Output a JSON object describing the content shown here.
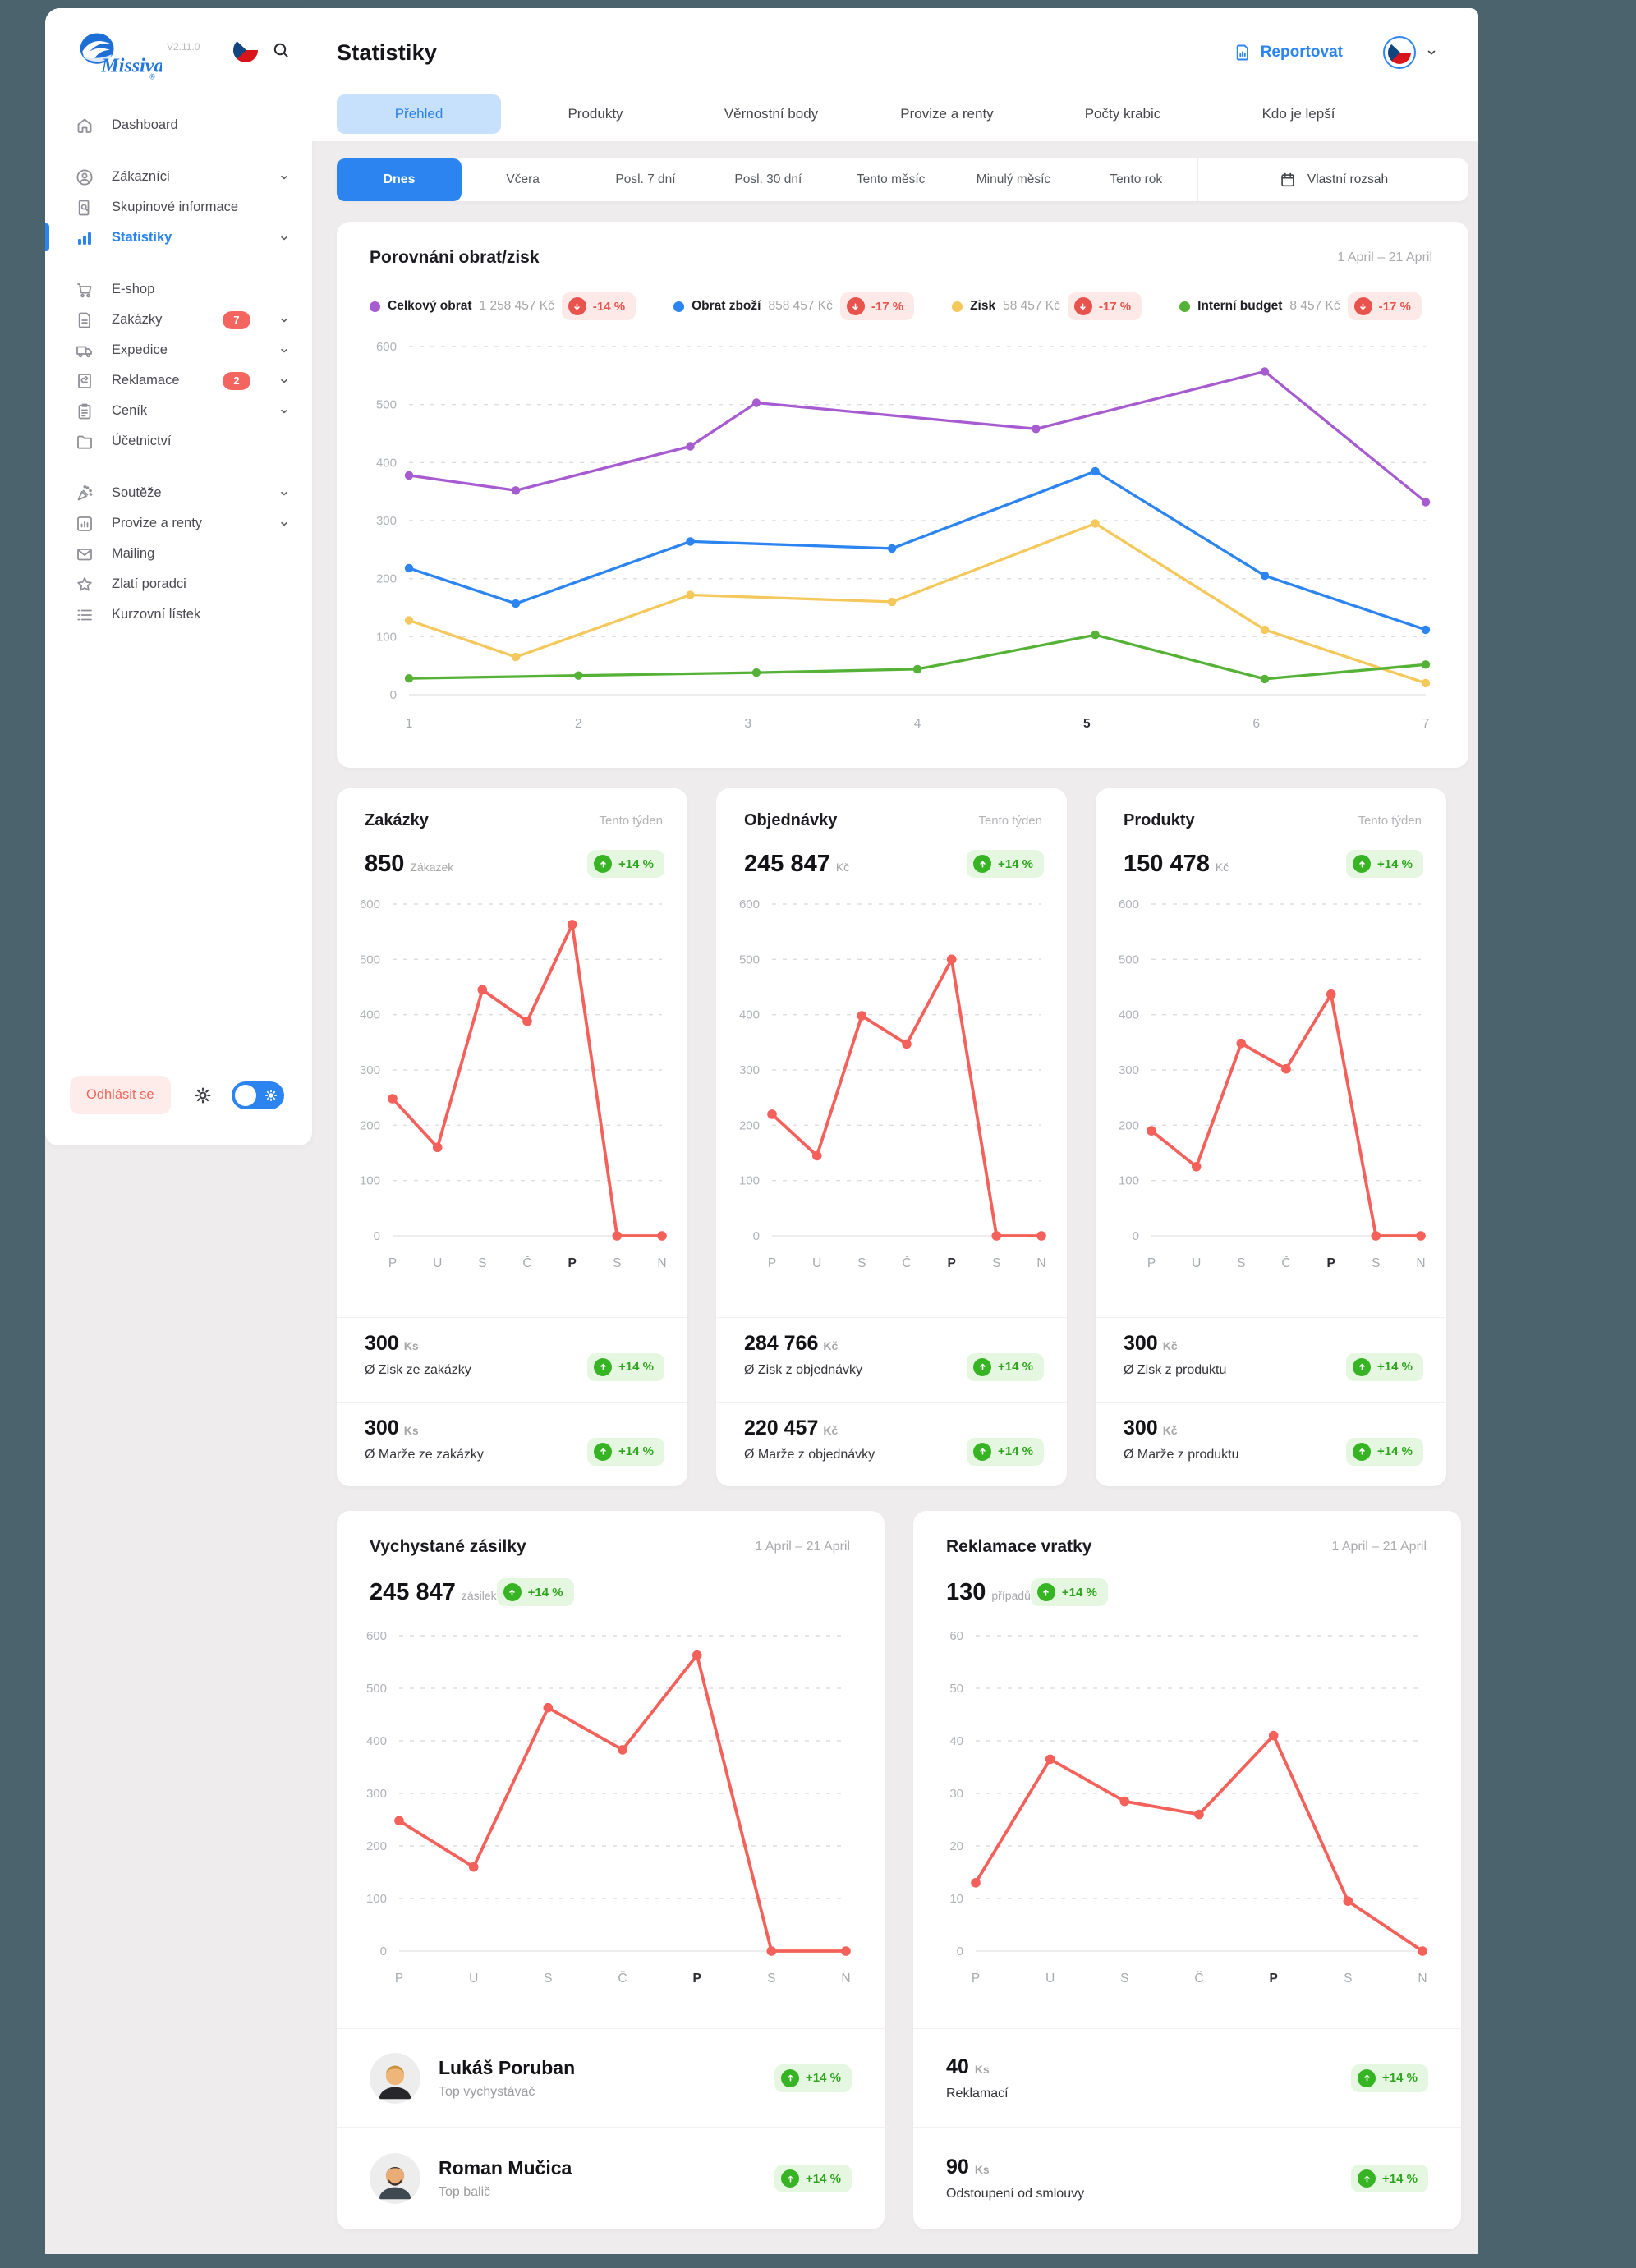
{
  "colors": {
    "accent": "#2B84F0",
    "accent_light": "#C7E0FC",
    "frame": "#4A636D",
    "canvas": "#EEECEC",
    "negative": "#E8544D",
    "negative_bg": "#FCE9E8",
    "positive": "#2FA51F",
    "positive_bg": "#E6F7E1",
    "badge_red": "#F4655F",
    "line_red": "#F4605A"
  },
  "sidebar": {
    "brand": "Missiva",
    "version": "V2.11.0",
    "flag_icon": "czech-flag-icon",
    "search_icon": "search-icon",
    "items": [
      {
        "icon": "home-icon",
        "label": "Dashboard"
      },
      {
        "icon": "user-icon",
        "label": "Zákazníci",
        "chevron": true,
        "gap_before": true
      },
      {
        "icon": "doc-search-icon",
        "label": "Skupinové informace"
      },
      {
        "icon": "bar-chart-icon",
        "label": "Statistiky",
        "chevron": true,
        "active": true
      },
      {
        "icon": "cart-icon",
        "label": "E-shop",
        "gap_before": true
      },
      {
        "icon": "file-icon",
        "label": "Zakázky",
        "badge": "7",
        "chevron": true
      },
      {
        "icon": "truck-icon",
        "label": "Expedice",
        "chevron": true
      },
      {
        "icon": "return-icon",
        "label": "Reklamace",
        "badge": "2",
        "chevron": true
      },
      {
        "icon": "clipboard-icon",
        "label": "Ceník",
        "chevron": true
      },
      {
        "icon": "folder-icon",
        "label": "Účetnictví"
      },
      {
        "icon": "party-icon",
        "label": "Soutěže",
        "chevron": true,
        "gap_before": true
      },
      {
        "icon": "chart-box-icon",
        "label": "Provize a renty",
        "chevron": true
      },
      {
        "icon": "mail-icon",
        "label": "Mailing"
      },
      {
        "icon": "star-icon",
        "label": "Zlatí poradci"
      },
      {
        "icon": "list-icon",
        "label": "Kurzovní lístek"
      }
    ],
    "logout_label": "Odhlásit se",
    "settings_icon": "gear-icon",
    "theme_toggle": {
      "state": "on",
      "icon": "sun-icon"
    }
  },
  "header": {
    "title": "Statistiky",
    "report": {
      "icon": "report-doc-icon",
      "label": "Reportovat"
    },
    "language": {
      "icon": "czech-flag-icon",
      "chevron_icon": "chevron-down-icon"
    },
    "tabs": [
      {
        "label": "Přehled",
        "active": true
      },
      {
        "label": "Produkty"
      },
      {
        "label": "Věrnostní body"
      },
      {
        "label": "Provize a renty"
      },
      {
        "label": "Počty krabic"
      },
      {
        "label": "Kdo je lepší"
      }
    ]
  },
  "time_filters": {
    "options": [
      {
        "label": "Dnes",
        "active": true
      },
      {
        "label": "Včera"
      },
      {
        "label": "Posl. 7 dní"
      },
      {
        "label": "Posl. 30 dní"
      },
      {
        "label": "Tento měsíc"
      },
      {
        "label": "Minulý měsíc"
      },
      {
        "label": "Tento rok"
      }
    ],
    "custom": {
      "icon": "calendar-icon",
      "label": "Vlastní rozsah"
    }
  },
  "main_chart": {
    "title": "Porovnáni obrat/zisk",
    "date_range": "1 April – 21 April",
    "legend": [
      {
        "label": "Celkový obrat",
        "value": "1 258 457 Kč",
        "change": "-14 %",
        "direction": "down",
        "color": "#A75BD1"
      },
      {
        "label": "Obrat zboží",
        "value": "858 457 Kč",
        "change": "-17 %",
        "direction": "down",
        "color": "#2B84F0"
      },
      {
        "label": "Zisk",
        "value": "58 457 Kč",
        "change": "-17 %",
        "direction": "down",
        "color": "#F5C85C"
      },
      {
        "label": "Interní budget",
        "value": "8 457 Kč",
        "change": "-17 %",
        "direction": "down",
        "color": "#55B236"
      }
    ],
    "chart": {
      "type": "line",
      "ylim": [
        0,
        600
      ],
      "y_ticks": [
        0,
        100,
        200,
        300,
        400,
        500,
        600
      ],
      "x_labels": [
        "1",
        "2",
        "3",
        "4",
        "5",
        "6",
        "7"
      ],
      "bold_x_index": 4,
      "series": [
        {
          "name": "Celkový obrat",
          "color": "#A75BD1",
          "points": [
            [
              1,
              378
            ],
            [
              1.63,
              352
            ],
            [
              2.66,
              428
            ],
            [
              3.05,
              503
            ],
            [
              4.7,
              458
            ],
            [
              6.05,
              557
            ],
            [
              7,
              332
            ]
          ]
        },
        {
          "name": "Obrat zboží",
          "color": "#2B84F0",
          "points": [
            [
              1,
              218
            ],
            [
              1.63,
              157
            ],
            [
              2.66,
              264
            ],
            [
              3.85,
              252
            ],
            [
              5.05,
              385
            ],
            [
              6.05,
              205
            ],
            [
              7,
              112
            ]
          ]
        },
        {
          "name": "Zisk",
          "color": "#F5C85C",
          "points": [
            [
              1,
              128
            ],
            [
              1.63,
              65
            ],
            [
              2.66,
              172
            ],
            [
              3.85,
              160
            ],
            [
              5.05,
              295
            ],
            [
              6.05,
              112
            ],
            [
              7,
              20
            ]
          ]
        },
        {
          "name": "Interní budget",
          "color": "#55B236",
          "points": [
            [
              1,
              28
            ],
            [
              2,
              33
            ],
            [
              3.05,
              38
            ],
            [
              4,
              44
            ],
            [
              5.05,
              103
            ],
            [
              6.05,
              27
            ],
            [
              7,
              52
            ]
          ]
        }
      ]
    }
  },
  "cards": [
    {
      "title": "Zakázky",
      "period": "Tento týden",
      "value": "850",
      "unit": "Zákazek",
      "change": "+14 %",
      "direction": "up",
      "chart": {
        "type": "line",
        "ylim": [
          0,
          600
        ],
        "y_ticks": [
          0,
          100,
          200,
          300,
          400,
          500,
          600
        ],
        "x_labels": [
          "P",
          "U",
          "S",
          "Č",
          "P",
          "S",
          "N"
        ],
        "bold_x_index": 4,
        "series": [
          {
            "name": "Zakázky",
            "color": "#F4605A",
            "points": [
              [
                1,
                248
              ],
              [
                2,
                160
              ],
              [
                3,
                445
              ],
              [
                4,
                388
              ],
              [
                5,
                563
              ],
              [
                6,
                0
              ],
              [
                7,
                0
              ]
            ]
          }
        ]
      },
      "stats": [
        {
          "value": "300",
          "unit": "Ks",
          "label": "Ø Zisk ze zakázky",
          "change": "+14 %",
          "direction": "up"
        },
        {
          "value": "300",
          "unit": "Ks",
          "label": "Ø Marže ze zakázky",
          "change": "+14 %",
          "direction": "up"
        }
      ]
    },
    {
      "title": "Objednávky",
      "period": "Tento týden",
      "value": "245 847",
      "unit": "Kč",
      "change": "+14 %",
      "direction": "up",
      "chart": {
        "type": "line",
        "ylim": [
          0,
          600
        ],
        "y_ticks": [
          0,
          100,
          200,
          300,
          400,
          500,
          600
        ],
        "x_labels": [
          "P",
          "U",
          "S",
          "Č",
          "P",
          "S",
          "N"
        ],
        "bold_x_index": 4,
        "series": [
          {
            "name": "Objednávky",
            "color": "#F4605A",
            "points": [
              [
                1,
                220
              ],
              [
                2,
                145
              ],
              [
                3,
                398
              ],
              [
                4,
                347
              ],
              [
                5,
                500
              ],
              [
                6,
                0
              ],
              [
                7,
                0
              ]
            ]
          }
        ]
      },
      "stats": [
        {
          "value": "284 766",
          "unit": "Kč",
          "label": "Ø Zisk z objednávky",
          "change": "+14 %",
          "direction": "up"
        },
        {
          "value": "220 457",
          "unit": "Kč",
          "label": "Ø Marže z objednávky",
          "change": "+14 %",
          "direction": "up"
        }
      ]
    },
    {
      "title": "Produkty",
      "period": "Tento týden",
      "value": "150 478",
      "unit": "Kč",
      "change": "+14 %",
      "direction": "up",
      "chart": {
        "type": "line",
        "ylim": [
          0,
          600
        ],
        "y_ticks": [
          0,
          100,
          200,
          300,
          400,
          500,
          600
        ],
        "x_labels": [
          "P",
          "U",
          "S",
          "Č",
          "P",
          "S",
          "N"
        ],
        "bold_x_index": 4,
        "series": [
          {
            "name": "Produkty",
            "color": "#F4605A",
            "points": [
              [
                1,
                190
              ],
              [
                2,
                125
              ],
              [
                3,
                348
              ],
              [
                4,
                302
              ],
              [
                5,
                437
              ],
              [
                6,
                0
              ],
              [
                7,
                0
              ]
            ]
          }
        ]
      },
      "stats": [
        {
          "value": "300",
          "unit": "Kč",
          "label": "Ø Zisk z produktu",
          "change": "+14 %",
          "direction": "up"
        },
        {
          "value": "300",
          "unit": "Kč",
          "label": "Ø Marže z produktu",
          "change": "+14 %",
          "direction": "up"
        }
      ]
    }
  ],
  "bottom_cards": [
    {
      "title": "Vychystané zásilky",
      "date_range": "1 April – 21 April",
      "value": "245 847",
      "unit": "zásilek",
      "change": "+14 %",
      "direction": "up",
      "chart": {
        "type": "line",
        "ylim": [
          0,
          600
        ],
        "y_ticks": [
          0,
          100,
          200,
          300,
          400,
          500,
          600
        ],
        "x_labels": [
          "P",
          "U",
          "S",
          "Č",
          "P",
          "S",
          "N"
        ],
        "bold_x_index": 4,
        "series": [
          {
            "name": "Vychystané zásilky",
            "color": "#F4605A",
            "points": [
              [
                1,
                248
              ],
              [
                2,
                160
              ],
              [
                3,
                463
              ],
              [
                4,
                383
              ],
              [
                5,
                563
              ],
              [
                6,
                0
              ],
              [
                7,
                0
              ]
            ]
          }
        ]
      },
      "rows": [
        {
          "type": "person",
          "avatar": "blond-man-avatar",
          "name": "Lukáš Poruban",
          "role": "Top vychystávač",
          "change": "+14 %",
          "direction": "up"
        },
        {
          "type": "person",
          "avatar": "bearded-man-avatar",
          "name": "Roman Mučica",
          "role": "Top balič",
          "change": "+14 %",
          "direction": "up"
        }
      ]
    },
    {
      "title": "Reklamace vratky",
      "date_range": "1 April – 21 April",
      "value": "130",
      "unit": "případů",
      "change": "+14 %",
      "direction": "up",
      "chart": {
        "type": "line",
        "ylim": [
          0,
          60
        ],
        "y_ticks": [
          0,
          10,
          20,
          30,
          40,
          50,
          60
        ],
        "x_labels": [
          "P",
          "U",
          "S",
          "Č",
          "P",
          "S",
          "N"
        ],
        "bold_x_index": 4,
        "series": [
          {
            "name": "Reklamace vratky",
            "color": "#F4605A",
            "points": [
              [
                1,
                13
              ],
              [
                2,
                36.5
              ],
              [
                3,
                28.5
              ],
              [
                4,
                26
              ],
              [
                5,
                41
              ],
              [
                6,
                9.5
              ],
              [
                7,
                0
              ]
            ]
          }
        ]
      },
      "rows": [
        {
          "type": "stat",
          "value": "40",
          "unit": "Ks",
          "label": "Reklamací",
          "change": "+14 %",
          "direction": "up"
        },
        {
          "type": "stat",
          "value": "90",
          "unit": "Ks",
          "label": "Odstoupení od smlouvy",
          "change": "+14 %",
          "direction": "up"
        }
      ]
    }
  ]
}
